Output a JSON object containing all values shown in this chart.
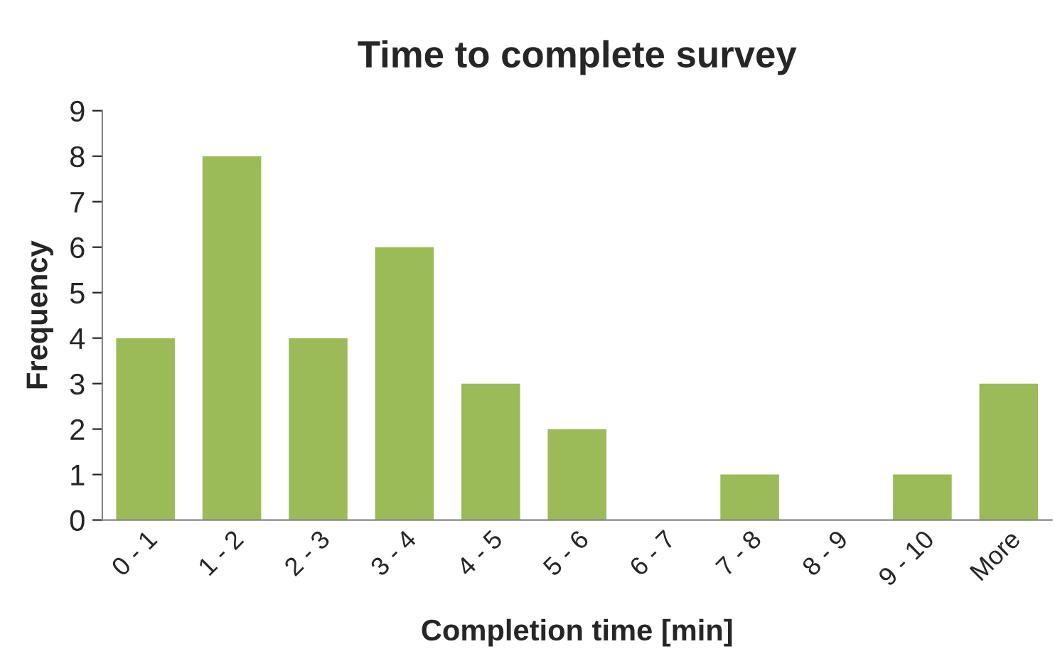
{
  "chart_data": {
    "type": "bar",
    "title": "Time to complete survey",
    "xlabel": "Completion time [min]",
    "ylabel": "Frequency",
    "categories": [
      "0 - 1",
      "1 - 2",
      "2 - 3",
      "3 - 4",
      "4 - 5",
      "5 - 6",
      "6 - 7",
      "7 - 8",
      "8 - 9",
      "9 - 10",
      "More"
    ],
    "values": [
      4,
      8,
      4,
      6,
      3,
      2,
      0,
      1,
      0,
      1,
      3
    ],
    "color": "#9bbb59",
    "ylim": [
      0,
      9
    ],
    "yticks": [
      0,
      1,
      2,
      3,
      4,
      5,
      6,
      7,
      8,
      9
    ],
    "grid": false,
    "legend": false
  }
}
